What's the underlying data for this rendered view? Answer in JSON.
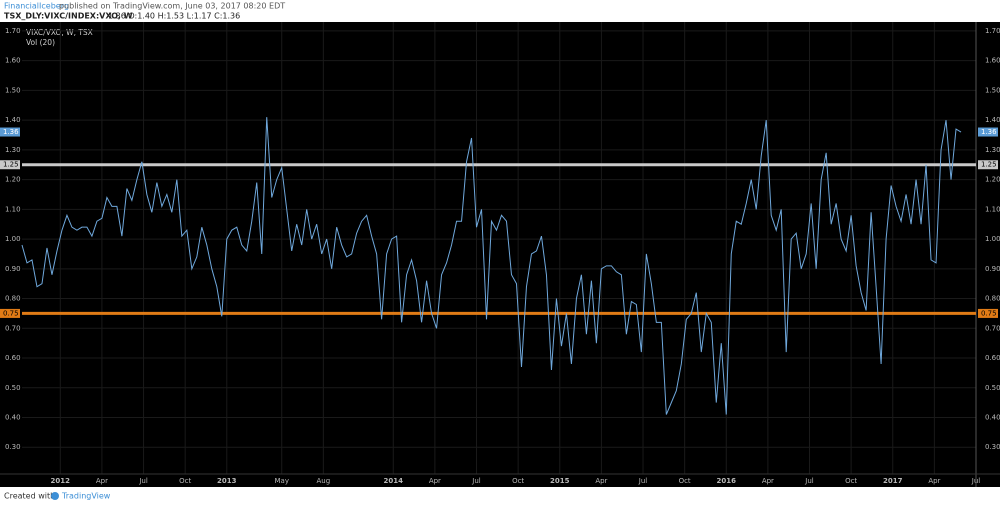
{
  "header": {
    "author": "FinancialIceberg",
    "published": "published on TradingView.com, June 03, 2017 08:20 EDT",
    "symbol": "TSX_DLY:VIXC/INDEX:VXO, W",
    "ohlc": "1.36 O:1.40 H:1.53 L:1.17 C:1.36"
  },
  "footer": {
    "created": "Created with",
    "brand": "TradingView"
  },
  "chart_data": {
    "type": "line",
    "indicator": "Vol (20)",
    "x": [
      2011.77,
      2011.8,
      2011.83,
      2011.86,
      2011.89,
      2011.92,
      2011.95,
      2011.98,
      2012.01,
      2012.04,
      2012.07,
      2012.1,
      2012.13,
      2012.16,
      2012.19,
      2012.22,
      2012.25,
      2012.28,
      2012.31,
      2012.34,
      2012.37,
      2012.4,
      2012.43,
      2012.46,
      2012.49,
      2012.52,
      2012.55,
      2012.58,
      2012.61,
      2012.64,
      2012.67,
      2012.7,
      2012.73,
      2012.76,
      2012.79,
      2012.82,
      2012.85,
      2012.88,
      2012.91,
      2012.94,
      2012.97,
      2013,
      2013.03,
      2013.06,
      2013.09,
      2013.12,
      2013.15,
      2013.18,
      2013.21,
      2013.24,
      2013.27,
      2013.3,
      2013.33,
      2013.36,
      2013.39,
      2013.42,
      2013.45,
      2013.48,
      2013.51,
      2013.54,
      2013.57,
      2013.6,
      2013.63,
      2013.66,
      2013.69,
      2013.72,
      2013.75,
      2013.78,
      2013.81,
      2013.84,
      2013.87,
      2013.9,
      2013.93,
      2013.96,
      2013.99,
      2014.02,
      2014.05,
      2014.08,
      2014.11,
      2014.14,
      2014.17,
      2014.2,
      2014.23,
      2014.26,
      2014.29,
      2014.32,
      2014.35,
      2014.38,
      2014.41,
      2014.44,
      2014.47,
      2014.5,
      2014.53,
      2014.56,
      2014.59,
      2014.62,
      2014.65,
      2014.68,
      2014.71,
      2014.74,
      2014.77,
      2014.8,
      2014.83,
      2014.86,
      2014.89,
      2014.92,
      2014.95,
      2014.98,
      2015.01,
      2015.04,
      2015.07,
      2015.1,
      2015.13,
      2015.16,
      2015.19,
      2015.22,
      2015.25,
      2015.28,
      2015.31,
      2015.34,
      2015.37,
      2015.4,
      2015.43,
      2015.46,
      2015.49,
      2015.52,
      2015.55,
      2015.58,
      2015.61,
      2015.64,
      2015.67,
      2015.7,
      2015.73,
      2015.76,
      2015.79,
      2015.82,
      2015.85,
      2015.88,
      2015.91,
      2015.94,
      2015.97,
      2016,
      2016.03,
      2016.06,
      2016.09,
      2016.12,
      2016.15,
      2016.18,
      2016.21,
      2016.24,
      2016.27,
      2016.3,
      2016.33,
      2016.36,
      2016.39,
      2016.42,
      2016.45,
      2016.48,
      2016.51,
      2016.54,
      2016.57,
      2016.6,
      2016.63,
      2016.66,
      2016.69,
      2016.72,
      2016.75,
      2016.78,
      2016.81,
      2016.84,
      2016.87,
      2016.9,
      2016.93,
      2016.96,
      2016.99,
      2017.02,
      2017.05,
      2017.08,
      2017.11,
      2017.14,
      2017.17,
      2017.2,
      2017.23,
      2017.26,
      2017.29,
      2017.32,
      2017.35,
      2017.38,
      2017.41
    ],
    "series": [
      {
        "name": "VIXC/VXO, W, TSX",
        "color": "#6fa8dc",
        "values": [
          0.98,
          0.92,
          0.93,
          0.84,
          0.85,
          0.97,
          0.88,
          0.96,
          1.03,
          1.08,
          1.04,
          1.03,
          1.04,
          1.04,
          1.01,
          1.06,
          1.07,
          1.14,
          1.11,
          1.11,
          1.01,
          1.17,
          1.13,
          1.2,
          1.26,
          1.15,
          1.09,
          1.19,
          1.11,
          1.15,
          1.09,
          1.2,
          1.01,
          1.03,
          0.9,
          0.94,
          1.04,
          0.98,
          0.9,
          0.84,
          0.74,
          1,
          1.03,
          1.04,
          0.98,
          0.96,
          1.06,
          1.19,
          0.95,
          1.41,
          1.14,
          1.2,
          1.24,
          1.1,
          0.96,
          1.05,
          0.98,
          1.1,
          1,
          1.05,
          0.95,
          1,
          0.9,
          1.04,
          0.98,
          0.94,
          0.95,
          1.02,
          1.06,
          1.08,
          1.01,
          0.95,
          0.73,
          0.95,
          1,
          1.01,
          0.72,
          0.88,
          0.93,
          0.86,
          0.72,
          0.86,
          0.75,
          0.7,
          0.88,
          0.92,
          0.98,
          1.06,
          1.06,
          1.26,
          1.34,
          1.04,
          1.1,
          0.73,
          1.06,
          1.03,
          1.08,
          1.06,
          0.88,
          0.85,
          0.57,
          0.84,
          0.95,
          0.96,
          1.01,
          0.88,
          0.56,
          0.8,
          0.64,
          0.75,
          0.58,
          0.8,
          0.88,
          0.68,
          0.86,
          0.65,
          0.9,
          0.91,
          0.91,
          0.89,
          0.88,
          0.68,
          0.79,
          0.78,
          0.62,
          0.95,
          0.85,
          0.72,
          0.72,
          0.41,
          0.45,
          0.49,
          0.58,
          0.73,
          0.75,
          0.82,
          0.62,
          0.75,
          0.72,
          0.45,
          0.65,
          0.41,
          0.95,
          1.06,
          1.05,
          1.12,
          1.2,
          1.1,
          1.28,
          1.4,
          1.08,
          1.03,
          1.1,
          0.62,
          1,
          1.02,
          0.9,
          0.95,
          1.12,
          0.9,
          1.2,
          1.29,
          1.05,
          1.12,
          1,
          0.96,
          1.08,
          0.91,
          0.82,
          0.76,
          1.09,
          0.84,
          0.58,
          1,
          1.18,
          1.11,
          1.06,
          1.15,
          1.05,
          1.2,
          1.05,
          1.25,
          0.93,
          0.92,
          1.3,
          1.4,
          1.2,
          1.37,
          1.36
        ]
      }
    ],
    "last_price": {
      "value": 1.36,
      "label": "1.36",
      "color": "#5b9bd5"
    },
    "hlines": [
      {
        "value": 1.25,
        "label": "1.25",
        "color": "#c9c9c9"
      },
      {
        "value": 0.75,
        "label": "0.75",
        "color": "#e07b16"
      }
    ],
    "xlim": [
      2011.77,
      2017.5
    ],
    "xticks": [
      2012,
      {
        "value": 2012.25,
        "label": "Apr"
      },
      {
        "value": 2012.5,
        "label": "Jul"
      },
      {
        "value": 2012.75,
        "label": "Oct"
      },
      2013,
      {
        "value": 2013.33,
        "label": "May"
      },
      {
        "value": 2013.58,
        "label": "Aug"
      },
      2014,
      {
        "value": 2014.25,
        "label": "Apr"
      },
      {
        "value": 2014.5,
        "label": "Jul"
      },
      {
        "value": 2014.75,
        "label": "Oct"
      },
      2015,
      {
        "value": 2015.25,
        "label": "Apr"
      },
      {
        "value": 2015.5,
        "label": "Jul"
      },
      {
        "value": 2015.75,
        "label": "Oct"
      },
      2016,
      {
        "value": 2016.25,
        "label": "Apr"
      },
      {
        "value": 2016.5,
        "label": "Jul"
      },
      {
        "value": 2016.75,
        "label": "Oct"
      },
      2017,
      {
        "value": 2017.25,
        "label": "Apr"
      },
      {
        "value": 2017.5,
        "label": "Jul"
      }
    ],
    "ylim": [
      0.21,
      1.73
    ],
    "yticks": [
      {
        "value": 0.3,
        "label": "0.30"
      },
      {
        "value": 0.4,
        "label": "0.40"
      },
      {
        "value": 0.5,
        "label": "0.50"
      },
      {
        "value": 0.6,
        "label": "0.60"
      },
      {
        "value": 0.7,
        "label": "0.70"
      },
      {
        "value": 0.8,
        "label": "0.80"
      },
      {
        "value": 0.9,
        "label": "0.90"
      },
      {
        "value": 1,
        "label": "1.00"
      },
      {
        "value": 1.1,
        "label": "1.10"
      },
      {
        "value": 1.2,
        "label": "1.20"
      },
      {
        "value": 1.3,
        "label": "1.30"
      },
      {
        "value": 1.4,
        "label": "1.40"
      },
      {
        "value": 1.5,
        "label": "1.50"
      },
      {
        "value": 1.6,
        "label": "1.60"
      },
      {
        "value": 1.7,
        "label": "1.70"
      }
    ],
    "grid": true
  }
}
